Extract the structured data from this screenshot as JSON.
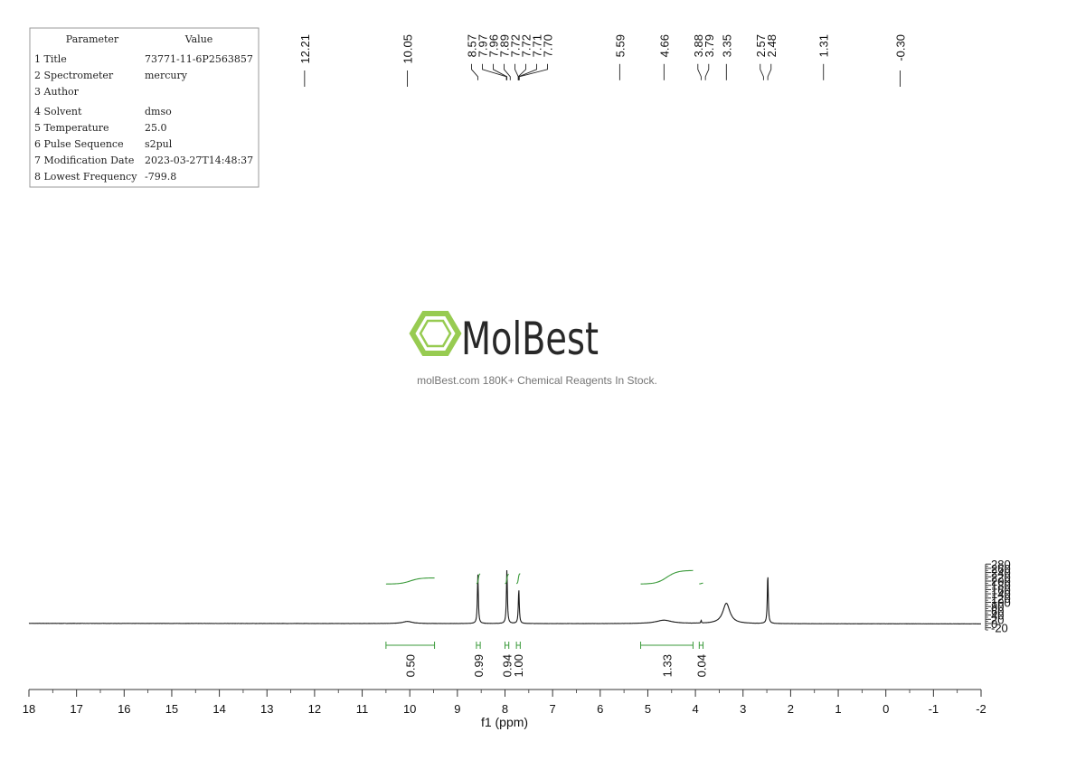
{
  "colors": {
    "spectrum": "#1a1a1a",
    "integral": "#3a9a3a",
    "axis": "#333333",
    "brand": "#8cc63f"
  },
  "parameter_table": {
    "header_param": "Parameter",
    "header_value": "Value",
    "rows": [
      {
        "param": "1 Title",
        "value": "73771-11-6P2563857"
      },
      {
        "param": "2 Spectrometer",
        "value": "mercury"
      },
      {
        "param": "3 Author",
        "value": ""
      },
      {
        "param": "4 Solvent",
        "value": "dmso"
      },
      {
        "param": "5 Temperature",
        "value": "25.0"
      },
      {
        "param": "6 Pulse Sequence",
        "value": "s2pul"
      },
      {
        "param": "7 Modification Date",
        "value": "2023-03-27T14:48:37"
      },
      {
        "param": "8 Lowest Frequency",
        "value": "-799.8"
      }
    ]
  },
  "watermark": {
    "name": "MolBest",
    "tagline": "molBest.com 180K+ Chemical Reagents In Stock.",
    "icon": "benzene-ring-icon"
  },
  "chart_data": {
    "type": "line",
    "title": "",
    "xlabel": "f1 (ppm)",
    "ylabel": "",
    "xlim": [
      18,
      -2
    ],
    "ylim": [
      -30,
      280
    ],
    "x_reversed": true,
    "x_ticks": [
      "18",
      "17",
      "16",
      "15",
      "14",
      "13",
      "12",
      "11",
      "10",
      "9",
      "8",
      "7",
      "6",
      "5",
      "4",
      "3",
      "2",
      "1",
      "0",
      "-1",
      "-2"
    ],
    "y_ticks": [
      "280",
      "260",
      "240",
      "220",
      "200",
      "180",
      "160",
      "140",
      "120",
      "100",
      "80",
      "60",
      "40",
      "20",
      "0",
      "-20"
    ],
    "y_axis_side": "right",
    "grid": false,
    "peaks": [
      {
        "ppm": 10.05,
        "height": 10,
        "width": 0.12
      },
      {
        "ppm": 8.57,
        "height": 232,
        "width": 0.012
      },
      {
        "ppm": 7.96,
        "height": 255,
        "width": 0.012
      },
      {
        "ppm": 7.71,
        "height": 162,
        "width": 0.012
      },
      {
        "ppm": 4.66,
        "height": 16,
        "width": 0.2
      },
      {
        "ppm": 3.88,
        "height": 15,
        "width": 0.006
      },
      {
        "ppm": 3.35,
        "height": 96,
        "width": 0.09
      },
      {
        "ppm": 2.48,
        "height": 232,
        "width": 0.012
      }
    ],
    "baseline": {
      "left_value": 0.8,
      "right_value": -1.4
    },
    "peak_labels": [
      "12.21",
      "10.05",
      "8.57",
      "7.97",
      "7.96",
      "7.89",
      "7.72",
      "7.72",
      "7.71",
      "7.70",
      "5.59",
      "4.66",
      "3.88",
      "3.79",
      "3.35",
      "2.57",
      "2.48",
      "1.31",
      "-0.30"
    ],
    "peak_label_ppm": [
      12.21,
      10.05,
      8.57,
      7.97,
      7.96,
      7.89,
      7.72,
      7.72,
      7.71,
      7.7,
      5.59,
      4.66,
      3.88,
      3.79,
      3.35,
      2.57,
      2.48,
      1.31,
      -0.3
    ],
    "integrals": [
      {
        "from": 10.5,
        "to": 9.48,
        "value": "0.50",
        "curve_low": 186,
        "curve_high": 215
      },
      {
        "from": 8.6,
        "to": 8.52,
        "value": "0.99",
        "curve_low": 188,
        "curve_high": 234
      },
      {
        "from": 8.0,
        "to": 7.92,
        "value": "0.94",
        "curve_low": 188,
        "curve_high": 232
      },
      {
        "from": 7.76,
        "to": 7.68,
        "value": "1.00",
        "curve_low": 188,
        "curve_high": 235
      },
      {
        "from": 5.15,
        "to": 4.05,
        "value": "1.33",
        "curve_low": 186,
        "curve_high": 250
      },
      {
        "from": 3.92,
        "to": 3.84,
        "value": "0.04",
        "curve_low": 187,
        "curve_high": 190
      }
    ]
  }
}
